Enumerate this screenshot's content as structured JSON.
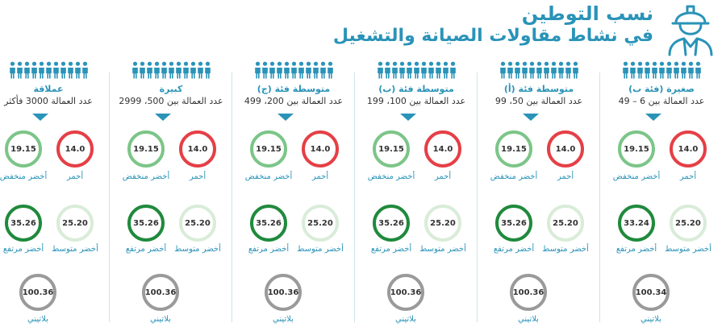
{
  "title": {
    "line1": "نسب التوطين",
    "line2": "في نشاط مقاولات الصيانة والتشغيل"
  },
  "labels": {
    "red": "أحمر",
    "green_low": "أخضر منخفض",
    "yellow": "أخضر متوسط",
    "green_high": "أخضر مرتفع",
    "platinum": "بلاتيني"
  },
  "colors": {
    "accent": "#2a93b8",
    "red": "#e53f46",
    "green_low": "#7cc588",
    "green_high": "#1f8a3c",
    "green_mid": "#d9ecd9",
    "platinum": "#9a9a9a"
  },
  "chart_data": {
    "type": "table",
    "title": "نسب التوطين في نشاط مقاولات الصيانة والتشغيل",
    "series_order": [
      "أحمر",
      "أخضر منخفض",
      "أخضر متوسط",
      "أخضر مرتفع",
      "بلاتيني"
    ],
    "columns": [
      {
        "name": "صغيرة (فئة ب)",
        "range": "عدد العمالة بين 6 – 49",
        "red": "14.0",
        "green_low": "19.15",
        "green_mid": "25.20",
        "green_high": "33.24",
        "platinum": "100.34"
      },
      {
        "name": "متوسطة فئة (أ)",
        "range": "عدد العمالة بين 50، 99",
        "red": "14.0",
        "green_low": "19.15",
        "green_mid": "25.20",
        "green_high": "35.26",
        "platinum": "100.36"
      },
      {
        "name": "متوسطة فئة (ب)",
        "range": "عدد العمالة بين 100، 199",
        "red": "14.0",
        "green_low": "19.15",
        "green_mid": "25.20",
        "green_high": "35.26",
        "platinum": "100.36"
      },
      {
        "name": "متوسطة فئة (ج)",
        "range": "عدد العمالة بين 200، 499",
        "red": "14.0",
        "green_low": "19.15",
        "green_mid": "25.20",
        "green_high": "35.26",
        "platinum": "100.36"
      },
      {
        "name": "كبيرة",
        "range": "عدد العمالة بين 500، 2999",
        "red": "14.0",
        "green_low": "19.15",
        "green_mid": "25.20",
        "green_high": "35.26",
        "platinum": "100.36"
      },
      {
        "name": "عملاقة",
        "range": "عدد العمالة 3000 فأكثر",
        "red": "14.0",
        "green_low": "19.15",
        "green_mid": "25.20",
        "green_high": "35.26",
        "platinum": "100.36"
      }
    ]
  }
}
